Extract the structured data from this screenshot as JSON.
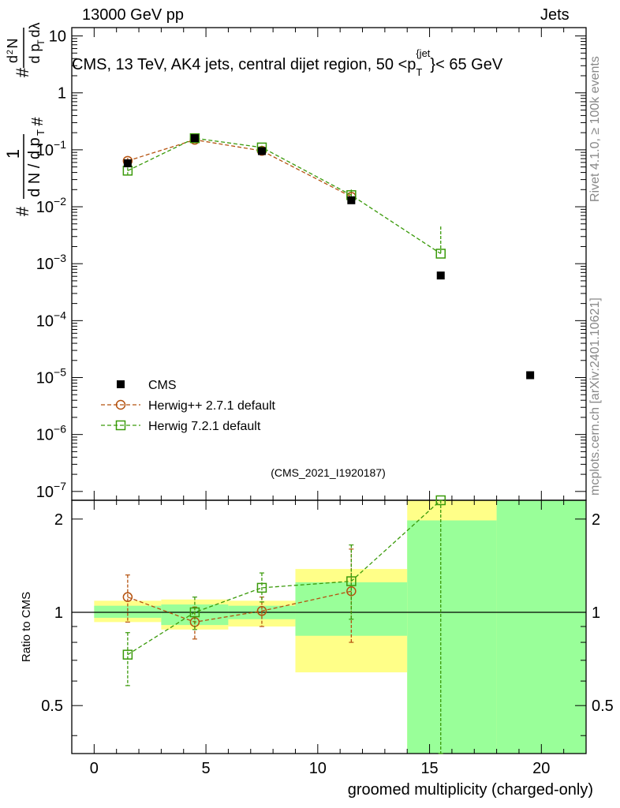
{
  "header": {
    "left": "13000 GeV pp",
    "right": "Jets"
  },
  "side_labels": {
    "rivet": "Rivet 4.1.0, ≥ 100k events",
    "mcplots": "mcplots.cern.ch [arXiv:2401.10621]"
  },
  "colors": {
    "cms": "#000000",
    "herwigpp": "#b5520f",
    "herwig7": "#3a9a0a",
    "band_yellow": "#ffff88",
    "band_green": "#99ff99"
  },
  "chart_data": {
    "type": "scatter",
    "title": "CMS, 13 TeV, AK4 jets, central dijet region, 50 <p_T^{jet}< 65 GeV",
    "title_parts": {
      "main": "CMS, 13 TeV, AK4 jets, central dijet region, 50 <p",
      "sub": "T",
      "sup": "{jet",
      "tail": "}< 65 GeV"
    },
    "analysis_id": "(CMS_2021_I1920187)",
    "xlabel": "groomed multiplicity (charged-only)",
    "ylabel_ratio": "Ratio to CMS",
    "xlim": [
      -1,
      22
    ],
    "ylim_main": [
      7e-08,
      14
    ],
    "ylim_ratio": [
      0.35,
      2.3
    ],
    "x_ticks": [
      0,
      5,
      10,
      15,
      20
    ],
    "x_tick_labels": [
      "0",
      "5",
      "10",
      "15",
      "20"
    ],
    "main_y_tick_labels": [
      {
        "v": 10,
        "base": "10",
        "exp": ""
      },
      {
        "v": 1,
        "base": "1",
        "exp": ""
      },
      {
        "v": 0.1,
        "base": "10",
        "exp": "−1"
      },
      {
        "v": 0.01,
        "base": "10",
        "exp": "−2"
      },
      {
        "v": 0.001,
        "base": "10",
        "exp": "−3"
      },
      {
        "v": 0.0001,
        "base": "10",
        "exp": "−4"
      },
      {
        "v": 1e-05,
        "base": "10",
        "exp": "−5"
      },
      {
        "v": 1e-06,
        "base": "10",
        "exp": "−6"
      },
      {
        "v": 1e-07,
        "base": "10",
        "exp": "−7"
      }
    ],
    "ratio_y_tick_labels": [
      {
        "v": 2,
        "t": "2"
      },
      {
        "v": 1,
        "t": "1"
      },
      {
        "v": 0.5,
        "t": "0.5"
      }
    ],
    "legend": [
      "CMS",
      "Herwig++ 2.7.1 default",
      "Herwig 7.2.1 default"
    ],
    "bins": [
      {
        "lo": 0,
        "hi": 3
      },
      {
        "lo": 3,
        "hi": 6
      },
      {
        "lo": 6,
        "hi": 9
      },
      {
        "lo": 9,
        "hi": 14
      },
      {
        "lo": 14,
        "hi": 18
      },
      {
        "lo": 18,
        "hi": 22
      }
    ],
    "series": [
      {
        "name": "CMS",
        "marker": "filled-square",
        "x": [
          1.5,
          4.5,
          7.5,
          11.5,
          15.5,
          19.5
        ],
        "y": [
          0.058,
          0.16,
          0.095,
          0.013,
          0.00062,
          1.1e-05
        ]
      },
      {
        "name": "Herwig++ 2.7.1 default",
        "marker": "open-circle",
        "x": [
          1.5,
          4.5,
          7.5,
          11.5
        ],
        "y": [
          0.064,
          0.15,
          0.096,
          0.015
        ],
        "yerr_lo": [
          0.008,
          0.01,
          0.007,
          0.003
        ],
        "yerr_hi": [
          0.008,
          0.01,
          0.007,
          0.003
        ],
        "ratio": [
          1.12,
          0.93,
          1.01,
          1.17
        ],
        "ratio_err_lo": [
          0.93,
          0.82,
          0.9,
          0.8
        ],
        "ratio_err_hi": [
          1.32,
          1.04,
          1.12,
          1.6
        ]
      },
      {
        "name": "Herwig 7.2.1 default",
        "marker": "open-square",
        "x": [
          1.5,
          4.5,
          7.5,
          11.5,
          15.5
        ],
        "y": [
          0.043,
          0.16,
          0.11,
          0.016,
          0.0015
        ],
        "yerr_lo": [
          0.006,
          0.012,
          0.008,
          0.004,
          1e-07
        ],
        "yerr_hi": [
          0.006,
          0.012,
          0.008,
          0.004,
          0.003
        ],
        "ratio": [
          0.73,
          1.0,
          1.2,
          1.26,
          2.3
        ],
        "ratio_err_lo": [
          0.58,
          0.88,
          1.08,
          0.95,
          0.35
        ],
        "ratio_err_hi": [
          0.86,
          1.12,
          1.34,
          1.65,
          2.3
        ]
      }
    ],
    "ratio_bands": [
      {
        "lo": 0,
        "hi": 3,
        "yellow": [
          0.93,
          1.09
        ],
        "green": [
          0.96,
          1.05
        ]
      },
      {
        "lo": 3,
        "hi": 6,
        "yellow": [
          0.88,
          1.1
        ],
        "green": [
          0.91,
          1.06
        ]
      },
      {
        "lo": 6,
        "hi": 9,
        "yellow": [
          0.9,
          1.09
        ],
        "green": [
          0.95,
          1.05
        ]
      },
      {
        "lo": 9,
        "hi": 14,
        "yellow": [
          0.64,
          1.38
        ],
        "green": [
          0.84,
          1.25
        ]
      },
      {
        "lo": 14,
        "hi": 18,
        "yellow": [
          0.35,
          2.3
        ],
        "green": [
          0.35,
          1.98
        ]
      },
      {
        "lo": 18,
        "hi": 22,
        "yellow": [
          0.35,
          2.3
        ],
        "green": [
          0.35,
          2.3
        ]
      }
    ]
  }
}
